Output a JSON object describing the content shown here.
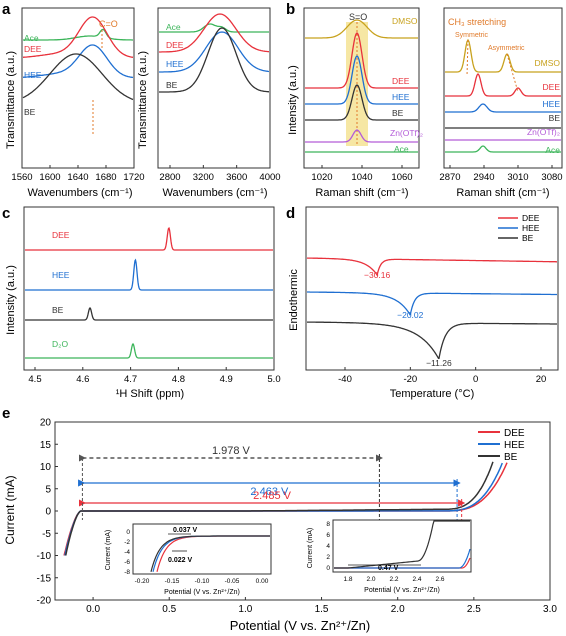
{
  "colors": {
    "DEE": "#e8323c",
    "HEE": "#1f6fd1",
    "BE": "#333333",
    "Ace": "#3cb55a",
    "D2O": "#3cb55a",
    "DMSO": "#c8a21e",
    "ZnOTf": "#b45cd8",
    "band": "#f3df86",
    "ann": "#e07a2a"
  },
  "panels": {
    "a": {
      "label": "a",
      "ylabel": "Transmittance (a.u.)",
      "left": {
        "xlabel": "Wavenumbers (cm⁻¹)",
        "ticks": [
          "1560",
          "1600",
          "1640",
          "1680",
          "1720"
        ],
        "annotation": "C=O",
        "series": [
          {
            "name": "Ace",
            "key": "Ace"
          },
          {
            "name": "DEE",
            "key": "DEE"
          },
          {
            "name": "HEE",
            "key": "HEE"
          },
          {
            "name": "BE",
            "key": "BE"
          }
        ]
      },
      "right": {
        "xlabel": "Wavenumbers (cm⁻¹)",
        "ticks": [
          "2800",
          "3200",
          "3600",
          "4000"
        ],
        "series": [
          {
            "name": "Ace",
            "key": "Ace"
          },
          {
            "name": "DEE",
            "key": "DEE"
          },
          {
            "name": "HEE",
            "key": "HEE"
          },
          {
            "name": "BE",
            "key": "BE"
          }
        ]
      }
    },
    "b": {
      "label": "b",
      "ylabel": "Intensity (a.u.)",
      "left": {
        "xlabel": "Raman shift (cm⁻¹)",
        "ticks": [
          "1020",
          "1040",
          "1060"
        ],
        "annotation": "S=O",
        "series": [
          {
            "name": "DMSO",
            "key": "DMSO"
          },
          {
            "name": "DEE",
            "key": "DEE"
          },
          {
            "name": "HEE",
            "key": "HEE"
          },
          {
            "name": "BE",
            "key": "BE"
          },
          {
            "name": "Zn(OTf)₂",
            "key": "ZnOTf"
          },
          {
            "name": "Ace",
            "key": "Ace"
          }
        ]
      },
      "right": {
        "xlabel": "Raman shift (cm⁻¹)",
        "ticks": [
          "2870",
          "2940",
          "3010",
          "3080"
        ],
        "title": "CH₃ stretching",
        "symmetric": "Symmetric",
        "asymmetric": "Asymmetric",
        "series": [
          {
            "name": "DMSO",
            "key": "DMSO"
          },
          {
            "name": "DEE",
            "key": "DEE"
          },
          {
            "name": "HEE",
            "key": "HEE"
          },
          {
            "name": "BE",
            "key": "BE"
          },
          {
            "name": "Zn(OTf)₂",
            "key": "ZnOTf"
          },
          {
            "name": "Ace",
            "key": "Ace"
          }
        ]
      }
    },
    "c": {
      "label": "c",
      "ylabel": "Intensity (a.u.)",
      "xlabel": "¹H Shift (ppm)",
      "ticks": [
        "4.5",
        "4.6",
        "4.7",
        "4.8",
        "4.9",
        "5.0"
      ],
      "series": [
        {
          "name": "DEE",
          "key": "DEE",
          "peak": 4.78
        },
        {
          "name": "HEE",
          "key": "HEE",
          "peak": 4.71
        },
        {
          "name": "BE",
          "key": "BE",
          "peak": 4.615
        },
        {
          "name": "D₂O",
          "key": "D2O",
          "peak": 4.705
        }
      ]
    },
    "d": {
      "label": "d",
      "ylabel": "Endothermic",
      "xlabel": "Temperature (°C)",
      "ticks": [
        "-40",
        "-20",
        "0",
        "20"
      ],
      "series": [
        {
          "name": "DEE",
          "key": "DEE",
          "peak": -30.16,
          "peak_label": "−30.16"
        },
        {
          "name": "HEE",
          "key": "HEE",
          "peak": -20.02,
          "peak_label": "−20.02"
        },
        {
          "name": "BE",
          "key": "BE",
          "peak": -11.26,
          "peak_label": "−11.26"
        }
      ]
    },
    "e": {
      "label": "e",
      "ylabel": "Current (mA)",
      "xlabel": "Potential (V vs. Zn²⁺/Zn)",
      "xticks": [
        "0.0",
        "0.5",
        "1.0",
        "1.5",
        "2.0",
        "2.5",
        "3.0"
      ],
      "yticks": [
        "20",
        "15",
        "10",
        "5",
        "0",
        "-5",
        "-10",
        "-15",
        "-20"
      ],
      "series": [
        {
          "name": "DEE",
          "key": "DEE"
        },
        {
          "name": "HEE",
          "key": "HEE"
        },
        {
          "name": "BE",
          "key": "BE"
        }
      ],
      "windows": [
        {
          "label": "1.978 V",
          "key": "BE"
        },
        {
          "label": "2.463 V",
          "key": "HEE"
        },
        {
          "label": "2.485 V",
          "key": "DEE"
        }
      ],
      "inset1": {
        "ylabel": "Current (mA)",
        "xlabel": "Potential (V vs. Zn²⁺/Zn)",
        "xticks": [
          "-0.20",
          "-0.15",
          "-0.10",
          "-0.05",
          "0.00"
        ],
        "yticks": [
          "0",
          "-2",
          "-4",
          "-6",
          "-8"
        ],
        "ann1": "0.037 V",
        "ann2": "0.022 V"
      },
      "inset2": {
        "ylabel": "Current (mA)",
        "xlabel": "Potential (V vs. Zn²⁺/Zn)",
        "xticks": [
          "1.8",
          "2.0",
          "2.2",
          "2.4",
          "2.6"
        ],
        "yticks": [
          "8",
          "6",
          "4",
          "2",
          "0"
        ],
        "ann": "0.47 V"
      }
    }
  },
  "chart_data": [
    {
      "type": "line",
      "panel": "a-left",
      "xlabel": "Wavenumbers (cm⁻¹)",
      "ylabel": "Transmittance (a.u.)",
      "xlim": [
        1560,
        1720
      ],
      "series": [
        {
          "name": "Ace",
          "dip": 1678
        },
        {
          "name": "DEE",
          "dip": 1650
        },
        {
          "name": "HEE",
          "dip": 1650
        },
        {
          "name": "BE",
          "dip": 1640
        }
      ]
    },
    {
      "type": "line",
      "panel": "a-right",
      "xlabel": "Wavenumbers (cm⁻¹)",
      "ylabel": "Transmittance (a.u.)",
      "xlim": [
        2600,
        4000
      ],
      "series": [
        {
          "name": "Ace"
        },
        {
          "name": "DEE",
          "dip": 3300
        },
        {
          "name": "HEE",
          "dip": 3350
        },
        {
          "name": "BE",
          "dip": 3300
        }
      ]
    },
    {
      "type": "line",
      "panel": "b-left",
      "xlabel": "Raman shift (cm⁻¹)",
      "ylabel": "Intensity (a.u.)",
      "xlim": [
        1010,
        1065
      ],
      "series": [
        {
          "name": "DMSO",
          "peak": 1035
        },
        {
          "name": "DEE",
          "peak": 1036
        },
        {
          "name": "HEE",
          "peak": 1036
        },
        {
          "name": "BE",
          "peak": 1035
        },
        {
          "name": "Zn(OTf)₂",
          "peak": 1033
        },
        {
          "name": "Ace"
        }
      ]
    },
    {
      "type": "line",
      "panel": "b-right",
      "xlabel": "Raman shift (cm⁻¹)",
      "ylabel": "Intensity (a.u.)",
      "xlim": [
        2850,
        3090
      ],
      "series": [
        {
          "name": "DMSO",
          "peaks": [
            2912,
            2995
          ]
        },
        {
          "name": "DEE",
          "peaks": [
            2925,
            3010
          ]
        },
        {
          "name": "HEE",
          "peaks": [
            2930
          ]
        },
        {
          "name": "BE"
        },
        {
          "name": "Zn(OTf)₂"
        },
        {
          "name": "Ace",
          "peaks": [
            2925
          ]
        }
      ]
    },
    {
      "type": "line",
      "panel": "c",
      "xlabel": "¹H Shift (ppm)",
      "ylabel": "Intensity (a.u.)",
      "xlim": [
        4.45,
        5.0
      ],
      "series": [
        {
          "name": "DEE",
          "peak": 4.78
        },
        {
          "name": "HEE",
          "peak": 4.71
        },
        {
          "name": "BE",
          "peak": 4.615
        },
        {
          "name": "D₂O",
          "peak": 4.705
        }
      ]
    },
    {
      "type": "line",
      "panel": "d",
      "xlabel": "Temperature (°C)",
      "ylabel": "Endothermic",
      "xlim": [
        -60,
        25
      ],
      "series": [
        {
          "name": "DEE",
          "peak": -30.16
        },
        {
          "name": "HEE",
          "peak": -20.02
        },
        {
          "name": "BE",
          "peak": -11.26
        }
      ]
    },
    {
      "type": "line",
      "panel": "e",
      "xlabel": "Potential (V vs. Zn²⁺/Zn)",
      "ylabel": "Current (mA)",
      "xlim": [
        -0.25,
        3.0
      ],
      "ylim": [
        -20,
        20
      ],
      "series": [
        {
          "name": "DEE",
          "window_V": 2.485
        },
        {
          "name": "HEE",
          "window_V": 2.463
        },
        {
          "name": "BE",
          "window_V": 1.978
        }
      ]
    }
  ]
}
